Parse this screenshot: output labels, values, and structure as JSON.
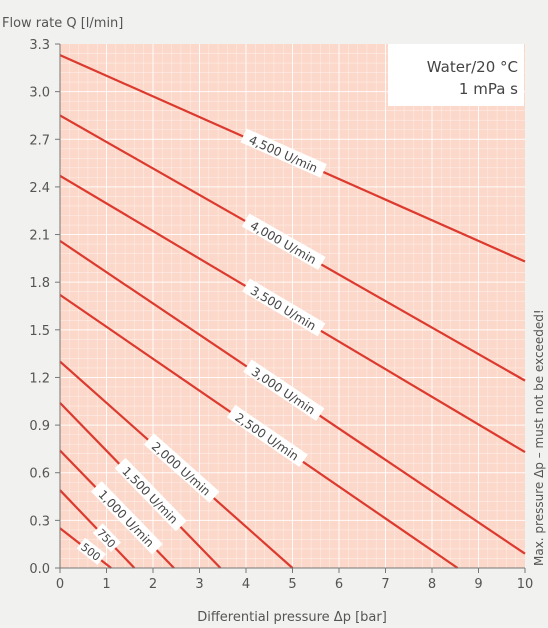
{
  "chart_data": {
    "type": "line",
    "ylabel": "Flow rate Q [l/min]",
    "xlabel": "Differential pressure Δp [bar]",
    "xlim": [
      0,
      10
    ],
    "ylim": [
      0,
      3.3
    ],
    "x_ticks": [
      "0",
      "1",
      "2",
      "3",
      "4",
      "5",
      "6",
      "7",
      "8",
      "9",
      "10"
    ],
    "y_ticks": [
      "0.0",
      "0.3",
      "0.6",
      "0.9",
      "1.2",
      "1.5",
      "1.8",
      "2.1",
      "2.4",
      "2.7",
      "3.0",
      "3.3"
    ],
    "grid": true,
    "legend_box": {
      "line1": "Water/20 °C",
      "line2": "1 mPa s"
    },
    "right_note": "Max. pressure Δp – must not be exceeded!",
    "series": [
      {
        "name": "500",
        "x": [
          0,
          1.1
        ],
        "y": [
          0.25,
          0.0
        ]
      },
      {
        "name": "750",
        "x": [
          0,
          1.6
        ],
        "y": [
          0.49,
          0.0
        ]
      },
      {
        "name": "1,000 U/min",
        "x": [
          0,
          2.45
        ],
        "y": [
          0.74,
          0.0
        ]
      },
      {
        "name": "1,500 U/min",
        "x": [
          0,
          3.45
        ],
        "y": [
          1.04,
          0.0
        ]
      },
      {
        "name": "2,000 U/min",
        "x": [
          0,
          5.0
        ],
        "y": [
          1.3,
          0.0
        ]
      },
      {
        "name": "2,500 U/min",
        "x": [
          0,
          8.55
        ],
        "y": [
          1.72,
          0.0
        ]
      },
      {
        "name": "3,000 U/min",
        "x": [
          0,
          10
        ],
        "y": [
          2.06,
          0.09
        ]
      },
      {
        "name": "3,500 U/min",
        "x": [
          0,
          10
        ],
        "y": [
          2.47,
          0.73
        ]
      },
      {
        "name": "4,000 U/min",
        "x": [
          0,
          10
        ],
        "y": [
          2.85,
          1.18
        ]
      },
      {
        "name": "4,500 U/min",
        "x": [
          0,
          10
        ],
        "y": [
          3.23,
          1.93
        ]
      }
    ],
    "colors": {
      "plot_bg": "#fbd8c9",
      "line": "#dc3a2f",
      "grid": "#ffffff"
    }
  }
}
